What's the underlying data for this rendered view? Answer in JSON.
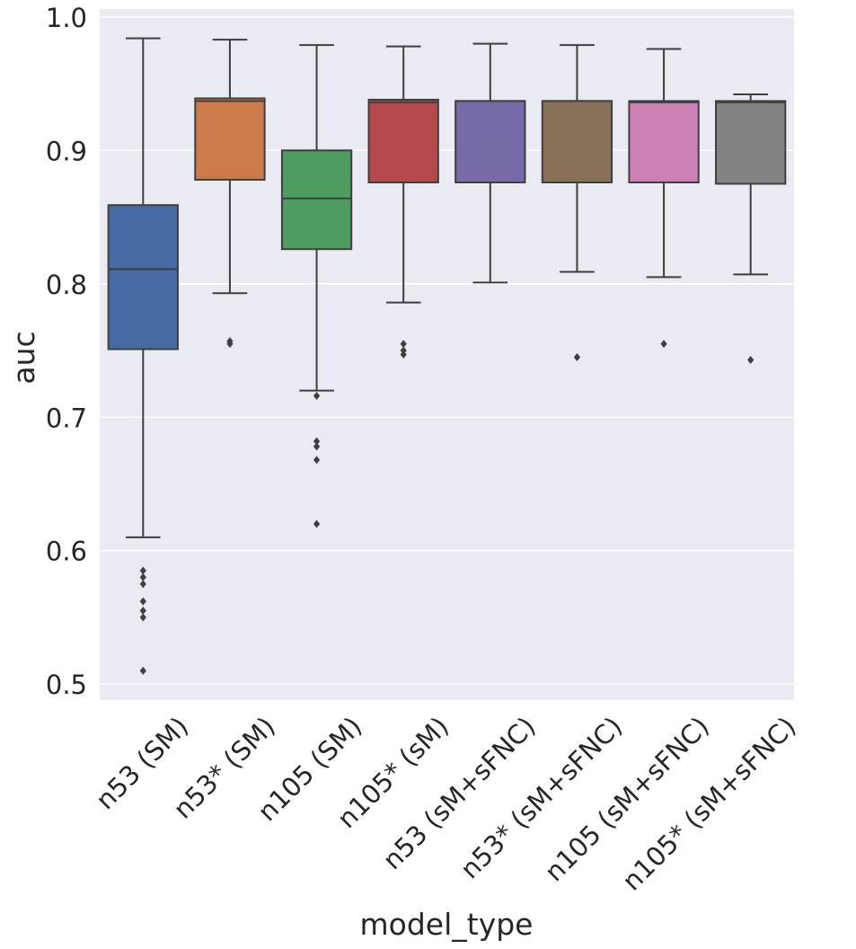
{
  "chart_data": {
    "type": "box",
    "xlabel": "model_type",
    "ylabel": "auc",
    "ylim": [
      0.488,
      1.006
    ],
    "yticks": [
      "0.5",
      "0.6",
      "0.7",
      "0.8",
      "0.9",
      "1.0"
    ],
    "grid": true,
    "categories": [
      "n53 (SM)",
      "n53* (SM)",
      "n105 (SM)",
      "n105* (sM)",
      "n53 (sM+sFNC)",
      "n53* (sM+sFNC)",
      "n105 (sM+sFNC)",
      "n105* (sM+sFNC)"
    ],
    "colors": [
      "#4c72b0",
      "#dd8452",
      "#55a868",
      "#c44e52",
      "#8172b3",
      "#937860",
      "#da8bc3",
      "#8c8c8c"
    ],
    "boxes": [
      {
        "whisker_low": 0.61,
        "q1": 0.751,
        "median": 0.811,
        "q3": 0.859,
        "whisker_high": 0.984,
        "outliers": [
          0.585,
          0.58,
          0.575,
          0.562,
          0.555,
          0.55,
          0.51
        ]
      },
      {
        "whisker_low": 0.793,
        "q1": 0.878,
        "median": 0.937,
        "q3": 0.939,
        "whisker_high": 0.983,
        "outliers": [
          0.757,
          0.755
        ]
      },
      {
        "whisker_low": 0.72,
        "q1": 0.826,
        "median": 0.864,
        "q3": 0.9,
        "whisker_high": 0.979,
        "outliers": [
          0.716,
          0.682,
          0.678,
          0.668,
          0.62
        ]
      },
      {
        "whisker_low": 0.786,
        "q1": 0.876,
        "median": 0.936,
        "q3": 0.938,
        "whisker_high": 0.978,
        "outliers": [
          0.755,
          0.75,
          0.747
        ]
      },
      {
        "whisker_low": 0.801,
        "q1": 0.876,
        "median": 0.937,
        "q3": 0.937,
        "whisker_high": 0.98,
        "outliers": []
      },
      {
        "whisker_low": 0.809,
        "q1": 0.876,
        "median": 0.937,
        "q3": 0.937,
        "whisker_high": 0.979,
        "outliers": [
          0.745
        ]
      },
      {
        "whisker_low": 0.805,
        "q1": 0.876,
        "median": 0.936,
        "q3": 0.937,
        "whisker_high": 0.976,
        "outliers": [
          0.755
        ]
      },
      {
        "whisker_low": 0.807,
        "q1": 0.875,
        "median": 0.936,
        "q3": 0.937,
        "whisker_high": 0.942,
        "outliers": [
          0.743
        ]
      }
    ]
  }
}
